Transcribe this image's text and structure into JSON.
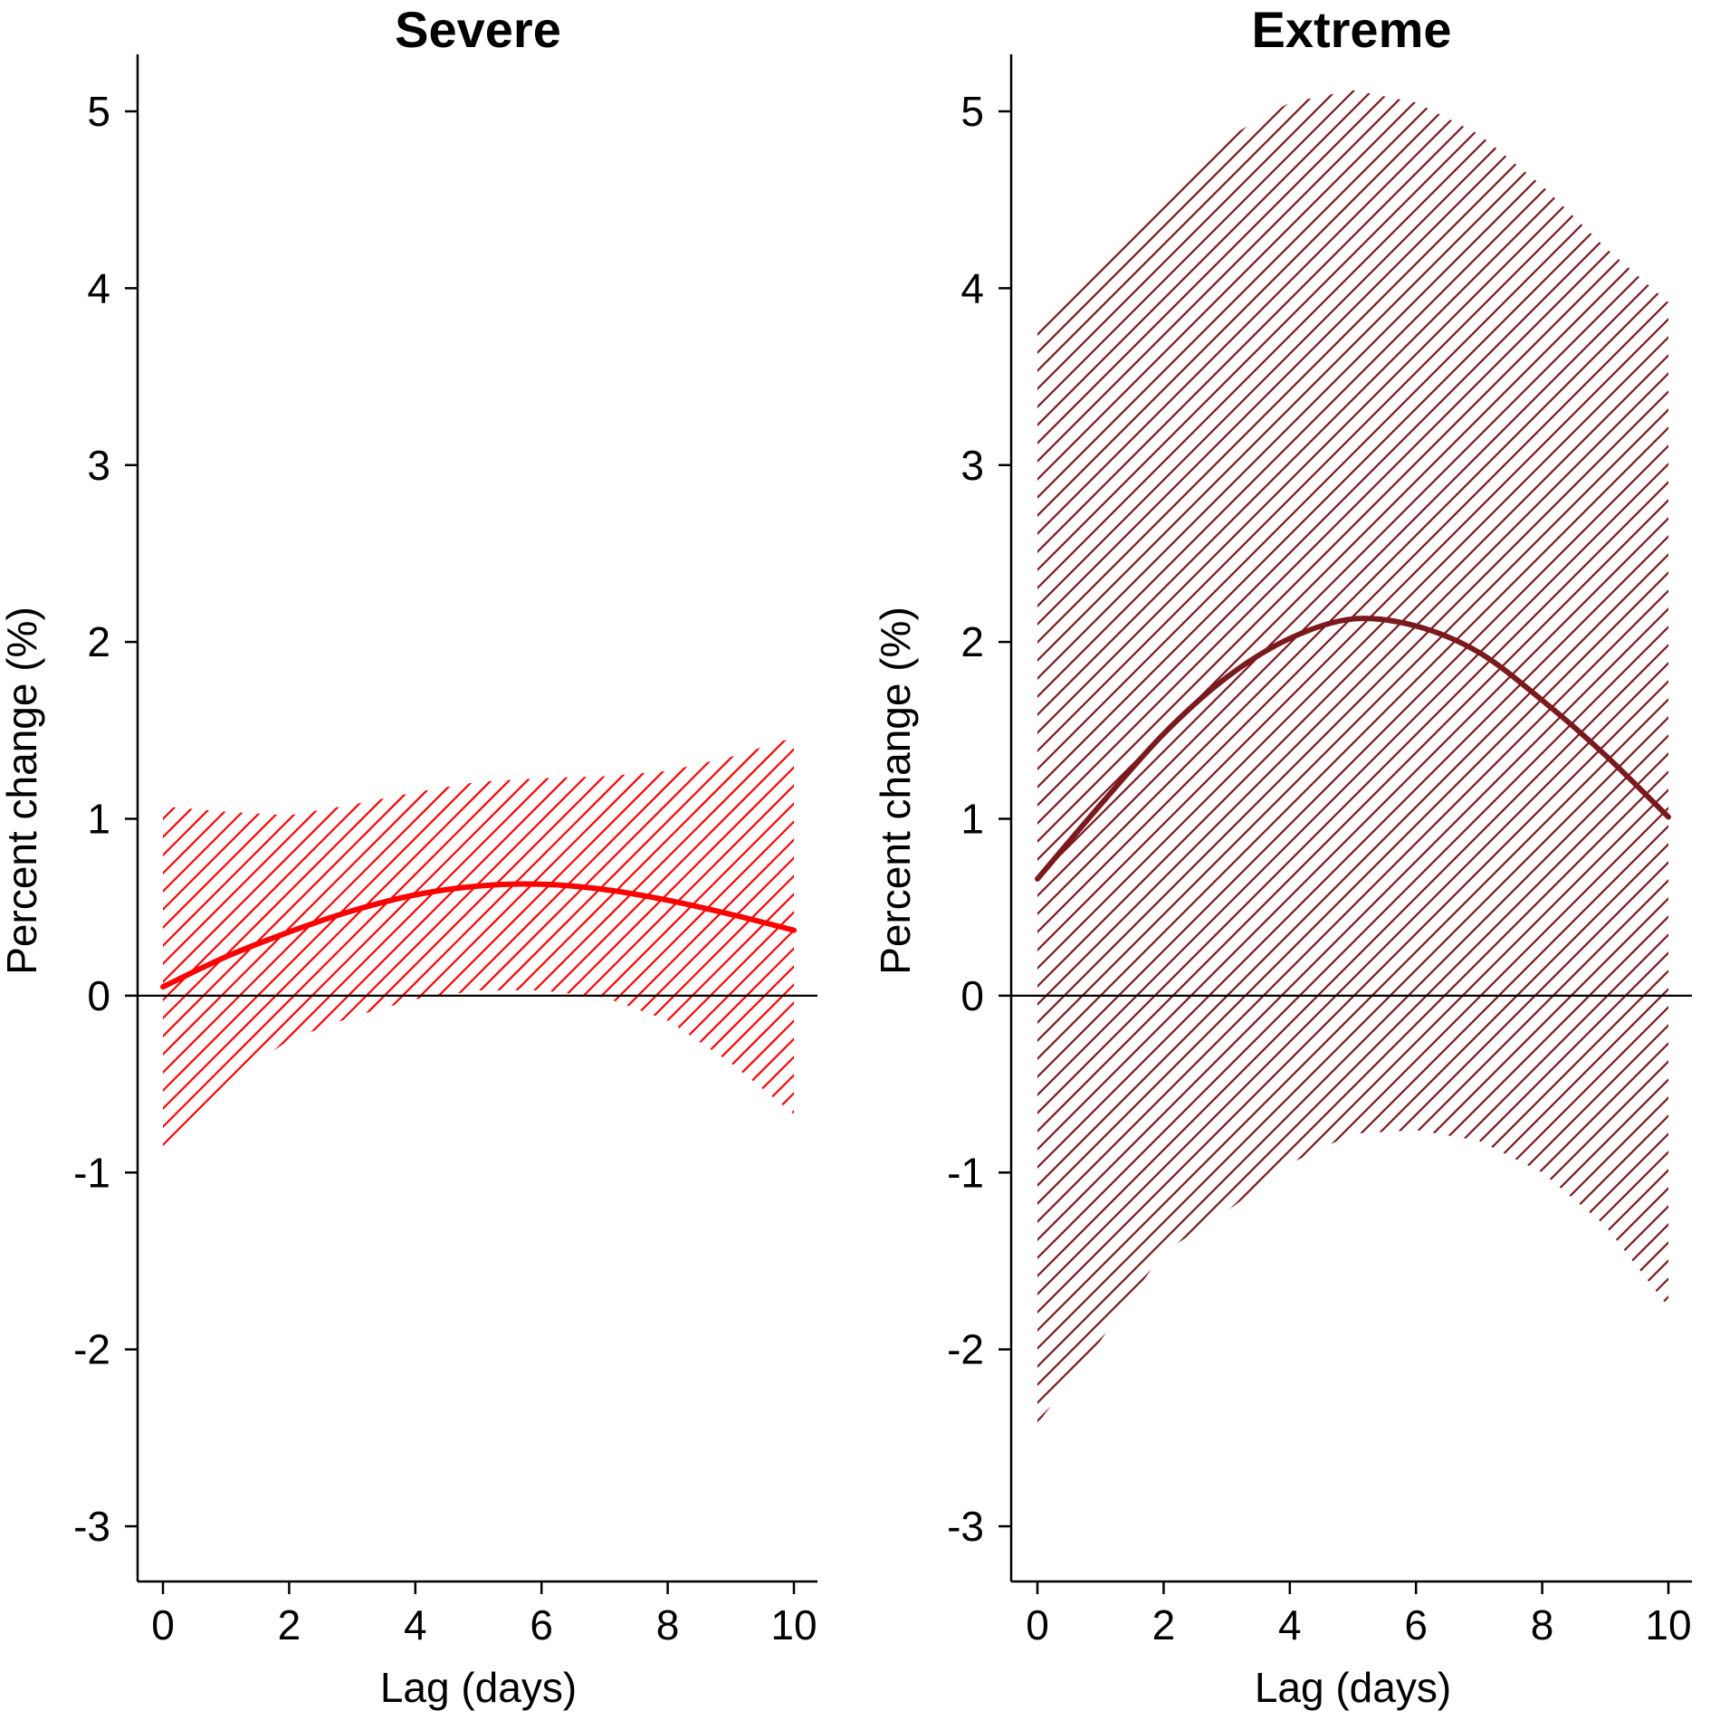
{
  "chart_data": [
    {
      "type": "line",
      "title": "Severe",
      "xlabel": "Lag (days)",
      "ylabel": "Percent change (%)",
      "xlim": [
        0,
        10
      ],
      "ylim": [
        -3,
        5
      ],
      "x_ticks": [
        0,
        2,
        4,
        6,
        8,
        10
      ],
      "y_ticks": [
        -3,
        -2,
        -1,
        0,
        1,
        2,
        3,
        4,
        5
      ],
      "reference_line": 0,
      "confidence_band": "hatched",
      "color": "#ff0000",
      "x": [
        0,
        1,
        2,
        3,
        4,
        5,
        6,
        7,
        8,
        9,
        10
      ],
      "series": [
        {
          "values": [
            0.05,
            0.22,
            0.36,
            0.48,
            0.57,
            0.62,
            0.63,
            0.6,
            0.54,
            0.46,
            0.37
          ]
        }
      ],
      "lower": [
        -0.86,
        -0.5,
        -0.25,
        -0.12,
        -0.02,
        0.03,
        0.03,
        -0.01,
        -0.14,
        -0.38,
        -0.67
      ],
      "upper": [
        1.07,
        1.04,
        1.02,
        1.08,
        1.15,
        1.21,
        1.23,
        1.24,
        1.27,
        1.35,
        1.46
      ]
    },
    {
      "type": "line",
      "title": "Extreme",
      "xlabel": "Lag (days)",
      "ylabel": "Percent change (%)",
      "xlim": [
        0,
        10
      ],
      "ylim": [
        -3,
        5
      ],
      "x_ticks": [
        0,
        2,
        4,
        6,
        8,
        10
      ],
      "y_ticks": [
        -3,
        -2,
        -1,
        0,
        1,
        2,
        3,
        4,
        5
      ],
      "reference_line": 0,
      "confidence_band": "hatched",
      "color": "#7a1a1f",
      "x": [
        0,
        1,
        2,
        3,
        4,
        5,
        6,
        7,
        8,
        9,
        10
      ],
      "series": [
        {
          "values": [
            0.66,
            1.08,
            1.48,
            1.8,
            2.02,
            2.13,
            2.09,
            1.94,
            1.67,
            1.36,
            1.01
          ]
        }
      ],
      "lower": [
        -2.42,
        -1.95,
        -1.45,
        -1.22,
        -0.95,
        -0.78,
        -0.76,
        -0.82,
        -1.0,
        -1.3,
        -1.76
      ],
      "upper": [
        3.79,
        4.15,
        4.52,
        4.85,
        5.05,
        5.12,
        5.05,
        4.87,
        4.58,
        4.23,
        3.92
      ]
    }
  ]
}
